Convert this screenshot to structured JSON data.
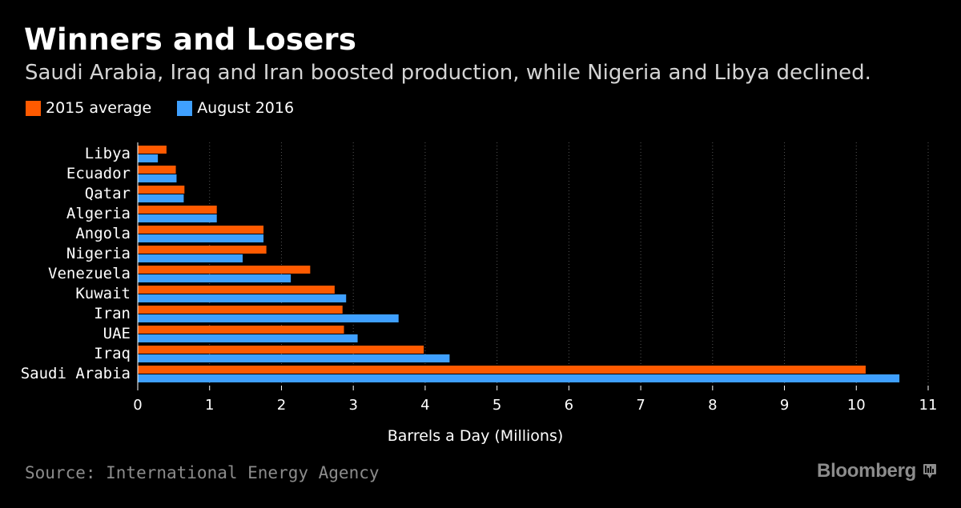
{
  "header": {
    "title": "Winners and Losers",
    "subtitle": "Saudi Arabia, Iraq and Iran boosted production, while Nigeria and Libya declined."
  },
  "footer": {
    "source": "Source: International Energy Agency",
    "brand": "Bloomberg",
    "brand_icon": "bloomberg-terminal-icon"
  },
  "colors": {
    "background": "#000000",
    "series_2015": "#ff5a00",
    "series_2016": "#3fa0ff",
    "grid": "#555555",
    "text": "#ffffff",
    "muted": "#8c8c8c"
  },
  "chart_data": {
    "type": "bar",
    "orientation": "horizontal",
    "title": "Winners and Losers",
    "subtitle": "Saudi Arabia, Iraq and Iran boosted production, while Nigeria and Libya declined.",
    "xlabel": "Barrels a Day (Millions)",
    "ylabel": "",
    "xlim": [
      0,
      11
    ],
    "xticks": [
      0,
      1,
      2,
      3,
      4,
      5,
      6,
      7,
      8,
      9,
      10,
      11
    ],
    "grid": "vertical dotted",
    "legend_position": "top-left",
    "categories": [
      "Libya",
      "Ecuador",
      "Qatar",
      "Algeria",
      "Angola",
      "Nigeria",
      "Venezuela",
      "Kuwait",
      "Iran",
      "UAE",
      "Iraq",
      "Saudi Arabia"
    ],
    "series": [
      {
        "name": "2015 average",
        "color": "#ff5a00",
        "values": [
          0.4,
          0.53,
          0.65,
          1.1,
          1.75,
          1.79,
          2.4,
          2.74,
          2.85,
          2.87,
          3.98,
          10.13
        ]
      },
      {
        "name": "August 2016",
        "color": "#3fa0ff",
        "values": [
          0.28,
          0.54,
          0.64,
          1.1,
          1.75,
          1.46,
          2.13,
          2.9,
          3.63,
          3.06,
          4.34,
          10.6
        ]
      }
    ]
  }
}
